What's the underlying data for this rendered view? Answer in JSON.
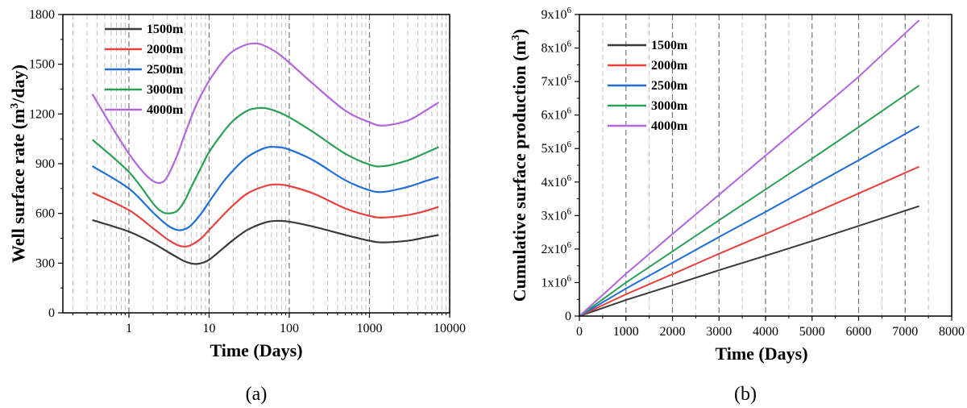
{
  "chart_data": [
    {
      "type": "line",
      "panel_label": "(a)",
      "xlabel": "Time (Days)",
      "ylabel_main": "Well surface rate (m",
      "ylabel_sup": "3",
      "ylabel_end": "/day)",
      "xscale": "log",
      "xlim": [
        0.15,
        10000
      ],
      "ylim": [
        0,
        1800
      ],
      "xticks": [
        1,
        10,
        100,
        1000,
        10000
      ],
      "xtick_labels": [
        "1",
        "10",
        "100",
        "1000",
        "10000"
      ],
      "yticks": [
        0,
        300,
        600,
        900,
        1200,
        1500,
        1800
      ],
      "ytick_labels": [
        "0",
        "300",
        "600",
        "900",
        "1200",
        "1500",
        "1800"
      ],
      "grid": "vertical dashed",
      "legend_position": "top-left",
      "series": [
        {
          "name": "1500m",
          "color": "#3a3a3a",
          "x": [
            0.35,
            1,
            2,
            3,
            4,
            5,
            6,
            7,
            8,
            10,
            15,
            20,
            30,
            50,
            70,
            100,
            200,
            500,
            1000,
            1500,
            3000,
            5000,
            7300
          ],
          "y": [
            560,
            490,
            420,
            370,
            335,
            310,
            298,
            295,
            300,
            320,
            390,
            440,
            500,
            545,
            555,
            550,
            520,
            470,
            435,
            425,
            435,
            455,
            470
          ]
        },
        {
          "name": "2000m",
          "color": "#e8403d",
          "x": [
            0.35,
            1,
            2,
            3,
            4,
            5,
            6,
            8,
            10,
            15,
            20,
            30,
            50,
            70,
            100,
            200,
            500,
            1000,
            1500,
            3000,
            5000,
            7300
          ],
          "y": [
            725,
            620,
            510,
            445,
            410,
            400,
            410,
            450,
            500,
            590,
            650,
            720,
            765,
            775,
            765,
            720,
            630,
            585,
            575,
            590,
            615,
            640
          ]
        },
        {
          "name": "2500m",
          "color": "#1f6fd6",
          "x": [
            0.35,
            1,
            2,
            3,
            4,
            5,
            6,
            8,
            10,
            15,
            20,
            30,
            50,
            70,
            100,
            200,
            500,
            1000,
            1500,
            3000,
            5000,
            7300
          ],
          "y": [
            885,
            750,
            605,
            530,
            500,
            505,
            530,
            600,
            670,
            790,
            860,
            940,
            995,
            1000,
            985,
            920,
            800,
            740,
            730,
            760,
            795,
            820
          ]
        },
        {
          "name": "3000m",
          "color": "#2aa055",
          "x": [
            0.35,
            1,
            2,
            2.5,
            3,
            4,
            5,
            6,
            8,
            10,
            15,
            20,
            30,
            40,
            50,
            70,
            100,
            200,
            500,
            1000,
            1500,
            3000,
            5000,
            7300
          ],
          "y": [
            1045,
            850,
            660,
            615,
            600,
            615,
            680,
            760,
            880,
            970,
            1090,
            1160,
            1220,
            1235,
            1235,
            1215,
            1180,
            1090,
            960,
            895,
            885,
            920,
            965,
            1000
          ]
        },
        {
          "name": "4000m",
          "color": "#b266e0",
          "x": [
            0.35,
            0.6,
            1,
            1.5,
            2,
            2.5,
            3,
            4,
            5,
            7,
            10,
            15,
            20,
            30,
            40,
            50,
            70,
            100,
            200,
            500,
            1000,
            1500,
            3000,
            5000,
            7300
          ],
          "y": [
            1320,
            1130,
            960,
            850,
            795,
            785,
            820,
            950,
            1080,
            1260,
            1400,
            1520,
            1580,
            1620,
            1625,
            1610,
            1570,
            1510,
            1380,
            1220,
            1150,
            1130,
            1160,
            1220,
            1270
          ]
        }
      ]
    },
    {
      "type": "line",
      "panel_label": "(b)",
      "xlabel": "Time (Days)",
      "ylabel_main": "Cumulative surface production (m",
      "ylabel_sup": "3",
      "ylabel_end": ")",
      "xscale": "linear",
      "xlim": [
        0,
        8000
      ],
      "ylim": [
        0,
        9000000
      ],
      "xticks": [
        0,
        1000,
        2000,
        3000,
        4000,
        5000,
        6000,
        7000,
        8000
      ],
      "xtick_labels": [
        "0",
        "1000",
        "2000",
        "3000",
        "4000",
        "5000",
        "6000",
        "7000",
        "8000"
      ],
      "yticks": [
        0,
        1000000,
        2000000,
        3000000,
        4000000,
        5000000,
        6000000,
        7000000,
        8000000,
        9000000
      ],
      "ytick_mantissa": [
        "0",
        "1x10",
        "2x10",
        "3x10",
        "4x10",
        "5x10",
        "6x10",
        "7x10",
        "8x10",
        "9x10"
      ],
      "ytick_exponent": [
        "",
        "6",
        "6",
        "6",
        "6",
        "6",
        "6",
        "6",
        "6",
        "6"
      ],
      "grid": "vertical dashed",
      "legend_position": "top-left",
      "series": [
        {
          "name": "1500m",
          "color": "#3a3a3a",
          "x": [
            0,
            1000,
            2000,
            3000,
            4000,
            5000,
            6000,
            7300
          ],
          "y": [
            0,
            480000,
            920000,
            1370000,
            1800000,
            2240000,
            2690000,
            3280000
          ]
        },
        {
          "name": "2000m",
          "color": "#e8403d",
          "x": [
            0,
            1000,
            2000,
            3000,
            4000,
            5000,
            6000,
            7300
          ],
          "y": [
            0,
            650000,
            1250000,
            1860000,
            2450000,
            3050000,
            3660000,
            4460000
          ]
        },
        {
          "name": "2500m",
          "color": "#1f6fd6",
          "x": [
            0,
            1000,
            2000,
            3000,
            4000,
            5000,
            6000,
            7300
          ],
          "y": [
            0,
            820000,
            1590000,
            2360000,
            3110000,
            3880000,
            4650000,
            5670000
          ]
        },
        {
          "name": "3000m",
          "color": "#2aa055",
          "x": [
            0,
            1000,
            2000,
            3000,
            4000,
            5000,
            6000,
            7300
          ],
          "y": [
            0,
            1000000,
            1930000,
            2860000,
            3780000,
            4700000,
            5640000,
            6880000
          ]
        },
        {
          "name": "4000m",
          "color": "#b266e0",
          "x": [
            0,
            1000,
            2000,
            3000,
            4000,
            5000,
            6000,
            7300
          ],
          "y": [
            0,
            1260000,
            2450000,
            3620000,
            4790000,
            5960000,
            7140000,
            8830000
          ]
        }
      ]
    }
  ]
}
